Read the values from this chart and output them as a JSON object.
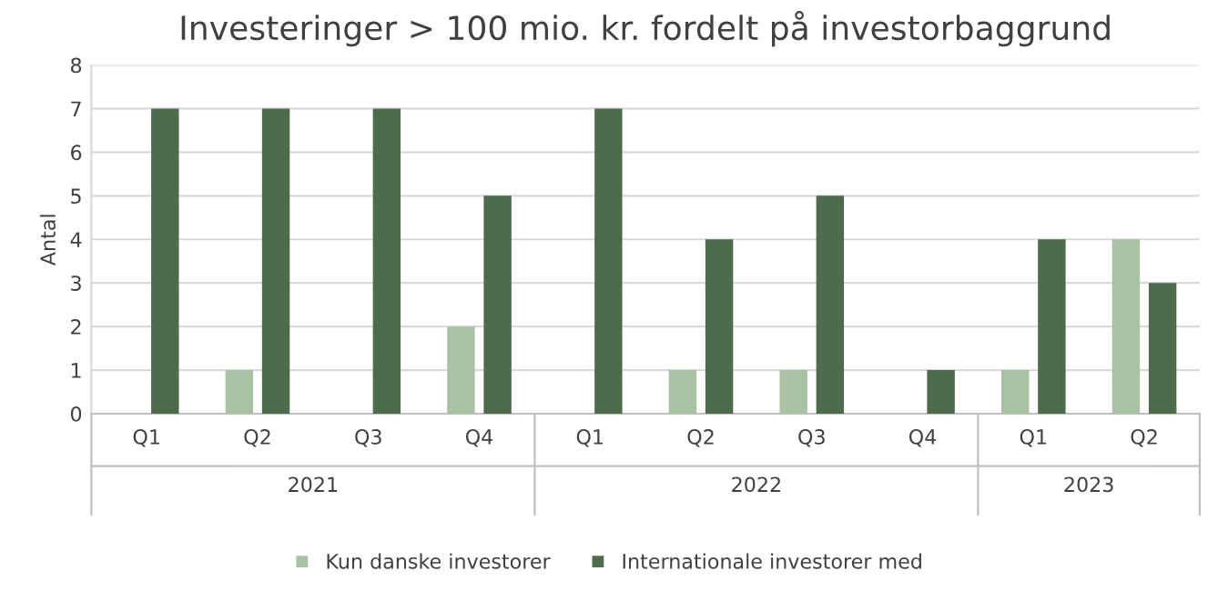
{
  "chart_data": {
    "type": "bar",
    "title": "Investeringer > 100 mio. kr. fordelt på investorbaggrund",
    "ylabel": "Antal",
    "categories": [
      "Q1",
      "Q2",
      "Q3",
      "Q4",
      "Q1",
      "Q2",
      "Q3",
      "Q4",
      "Q1",
      "Q2"
    ],
    "series": [
      {
        "name": "Kun danske investorer",
        "color": "#a9c2a4",
        "values": [
          0,
          1,
          0,
          2,
          0,
          1,
          1,
          0,
          1,
          4
        ]
      },
      {
        "name": "Internationale investorer med",
        "color": "#4f6b4d",
        "values": [
          7,
          7,
          7,
          5,
          7,
          4,
          5,
          1,
          4,
          3
        ]
      }
    ],
    "ylim": [
      0,
      8
    ],
    "yticks": [
      0,
      1,
      2,
      3,
      4,
      5,
      6,
      7,
      8
    ],
    "annotations": [
      "2021",
      "2022",
      "2023"
    ],
    "grid": "y",
    "legend": "bottom"
  }
}
